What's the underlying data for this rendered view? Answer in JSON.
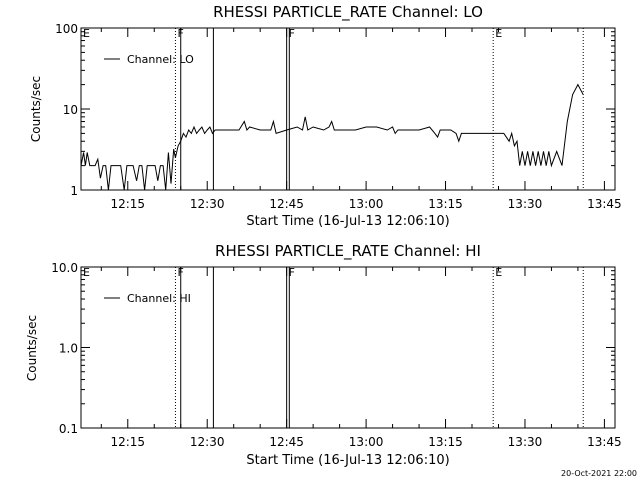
{
  "figure": {
    "footer_timestamp": "20-Oct-2021 22:00"
  },
  "chart_data": [
    {
      "type": "line",
      "title": "RHESSI PARTICLE_RATE Channel: LO",
      "xlabel": "Start Time (16-Jul-13 12:06:10)",
      "ylabel": "Counts/sec",
      "y_scale": "log",
      "ylim": [
        1,
        100
      ],
      "y_ticks": [
        {
          "value": 1,
          "label": "1"
        },
        {
          "value": 10,
          "label": "10"
        },
        {
          "value": 100,
          "label": "100"
        }
      ],
      "xlim": [
        "12:06:10",
        "13:47:00"
      ],
      "x_ticks": [
        "12:15",
        "12:30",
        "12:45",
        "13:00",
        "13:15",
        "13:30",
        "13:45"
      ],
      "legend": {
        "entries": [
          "Channel: LO"
        ],
        "placement": "top-left"
      },
      "flags": [
        {
          "label": "E",
          "time": "12:06:10",
          "style": "none"
        },
        {
          "label": "F",
          "time": "12:24:00",
          "style": "dotted"
        },
        {
          "label": "F",
          "time": "12:45:00",
          "style": "solid"
        },
        {
          "label": "E",
          "time": "13:24:00",
          "style": "dotted"
        }
      ],
      "solid_lines": [
        "12:25:00",
        "12:31:10",
        "12:45:30"
      ],
      "dotted_lines": [
        "13:41:00"
      ],
      "series": [
        {
          "name": "Channel: LO",
          "x": [
            "12:06:10",
            "12:06:40",
            "12:07:00",
            "12:07:20",
            "12:07:50",
            "12:08:20",
            "12:08:50",
            "12:09:20",
            "12:09:50",
            "12:10:20",
            "12:10:50",
            "12:11:20",
            "12:11:50",
            "12:12:10",
            "12:12:40",
            "12:13:00",
            "12:13:40",
            "12:14:20",
            "12:14:50",
            "12:15:20",
            "12:16:00",
            "12:16:40",
            "12:17:10",
            "12:17:40",
            "12:18:10",
            "12:18:40",
            "12:19:10",
            "12:19:40",
            "12:20:10",
            "12:20:40",
            "12:21:10",
            "12:21:40",
            "12:22:10",
            "12:22:40",
            "12:23:10",
            "12:23:40",
            "12:24:00",
            "12:24:30",
            "12:25:00",
            "12:25:30",
            "12:26:00",
            "12:26:30",
            "12:27:00",
            "12:27:30",
            "12:28:00",
            "12:28:30",
            "12:29:00",
            "12:29:30",
            "12:30:00",
            "12:30:30",
            "12:31:00",
            "12:31:30",
            "12:32:00",
            "12:34:00",
            "12:36:00",
            "12:37:00",
            "12:37:30",
            "12:38:00",
            "12:40:00",
            "12:42:00",
            "12:42:30",
            "12:43:00",
            "12:45:00",
            "12:47:00",
            "12:48:00",
            "12:48:30",
            "12:49:00",
            "12:50:00",
            "12:52:00",
            "12:53:00",
            "12:53:30",
            "12:54:00",
            "12:56:00",
            "12:58:00",
            "13:00:00",
            "13:02:00",
            "13:04:00",
            "13:05:00",
            "13:05:30",
            "13:06:00",
            "13:08:00",
            "13:10:00",
            "13:12:00",
            "13:13:00",
            "13:13:30",
            "13:14:00",
            "13:16:00",
            "13:17:00",
            "13:17:30",
            "13:18:00",
            "13:20:00",
            "13:22:00",
            "13:24:00",
            "13:26:00",
            "13:27:00",
            "13:27:30",
            "13:28:00",
            "13:28:30",
            "13:29:00",
            "13:29:30",
            "13:30:00",
            "13:30:30",
            "13:31:00",
            "13:31:30",
            "13:32:00",
            "13:32:30",
            "13:33:00",
            "13:33:30",
            "13:34:00",
            "13:34:30",
            "13:35:00",
            "13:36:00",
            "13:37:00",
            "13:38:00",
            "13:39:00",
            "13:40:00",
            "13:41:00"
          ],
          "values": [
            2,
            2.9,
            2,
            2.9,
            2,
            2,
            2,
            2.4,
            1.4,
            2,
            2,
            1,
            2,
            2,
            2,
            2,
            2,
            1,
            2,
            2,
            2,
            1.3,
            2,
            2,
            1,
            2,
            2,
            2,
            2,
            1.3,
            2,
            2,
            1,
            2.9,
            1.2,
            3.2,
            2.5,
            3.5,
            4,
            5,
            4.5,
            5.5,
            5,
            6,
            5,
            5.5,
            6,
            5,
            5.5,
            6,
            5,
            5.5,
            5.5,
            5.5,
            5.5,
            7,
            5.5,
            6,
            5.5,
            5.5,
            7,
            5,
            5.5,
            6,
            5.5,
            8,
            5.5,
            6,
            5.5,
            6,
            7,
            5.5,
            5.5,
            5.5,
            6,
            6,
            5.5,
            6,
            5,
            5.5,
            5.5,
            5.5,
            6,
            5,
            4.5,
            5.5,
            5.5,
            5,
            4,
            5,
            5,
            5,
            5,
            5,
            4,
            5,
            3.5,
            4,
            2,
            3,
            2,
            3,
            2,
            3,
            2,
            3,
            2,
            3,
            2,
            3,
            2,
            3,
            2,
            7,
            15,
            20,
            15
          ]
        }
      ]
    },
    {
      "type": "line",
      "title": "RHESSI PARTICLE_RATE Channel: HI",
      "xlabel": "Start Time (16-Jul-13 12:06:10)",
      "ylabel": "Counts/sec",
      "y_scale": "log",
      "ylim": [
        0.1,
        10
      ],
      "y_ticks": [
        {
          "value": 0.1,
          "label": "0.1"
        },
        {
          "value": 1,
          "label": "1.0"
        },
        {
          "value": 10,
          "label": "10.0"
        }
      ],
      "xlim": [
        "12:06:10",
        "13:47:00"
      ],
      "x_ticks": [
        "12:15",
        "12:30",
        "12:45",
        "13:00",
        "13:15",
        "13:30",
        "13:45"
      ],
      "legend": {
        "entries": [
          "Channel: HI"
        ],
        "placement": "top-left"
      },
      "flags": [
        {
          "label": "E",
          "time": "12:06:10",
          "style": "none"
        },
        {
          "label": "F",
          "time": "12:24:00",
          "style": "dotted"
        },
        {
          "label": "F",
          "time": "12:45:00",
          "style": "solid"
        },
        {
          "label": "E",
          "time": "13:24:00",
          "style": "dotted"
        }
      ],
      "solid_lines": [
        "12:25:00",
        "12:31:10",
        "12:45:30"
      ],
      "dotted_lines": [
        "13:41:00"
      ],
      "series": [
        {
          "name": "Channel: HI",
          "x": [],
          "values": []
        }
      ]
    }
  ]
}
